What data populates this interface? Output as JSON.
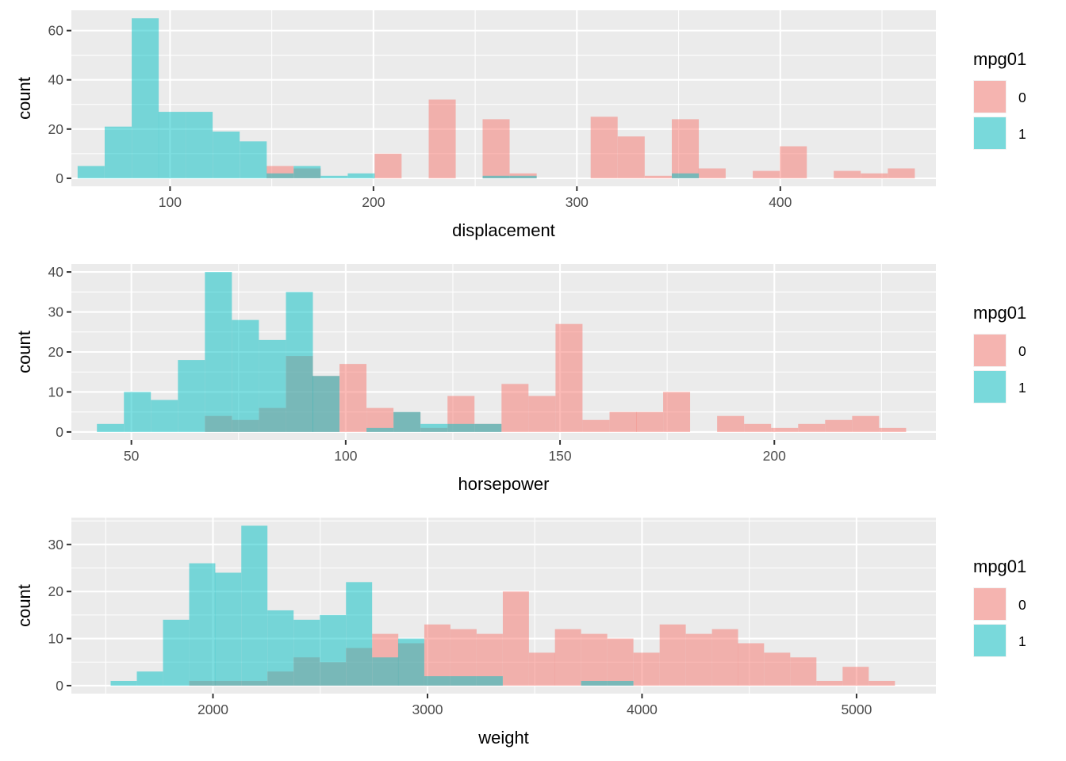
{
  "legend": {
    "title": "mpg01",
    "entries": [
      {
        "label": "0",
        "color": "#F8766D"
      },
      {
        "label": "1",
        "color": "#00BFC4"
      }
    ]
  },
  "fill_alpha": 0.5,
  "chart_data": [
    {
      "type": "bar",
      "subtype": "histogram-overlay",
      "xlabel": "displacement",
      "ylabel": "count",
      "xlim": [
        51.5,
        476.5
      ],
      "ylim": [
        -3.25,
        68.25
      ],
      "x_ticks": [
        100,
        200,
        300,
        400
      ],
      "y_ticks": [
        0,
        20,
        40,
        60
      ],
      "grid": true,
      "legend": "right",
      "binwidth": 13.27,
      "series": [
        {
          "name": "0",
          "color": "#F8766D",
          "bins": [
            [
              61.2,
              0
            ],
            [
              74.5,
              0
            ],
            [
              87.8,
              0
            ],
            [
              101.0,
              0
            ],
            [
              114.3,
              0
            ],
            [
              127.6,
              0
            ],
            [
              140.9,
              0
            ],
            [
              154.1,
              5
            ],
            [
              167.4,
              4
            ],
            [
              180.7,
              0
            ],
            [
              194.0,
              0
            ],
            [
              207.2,
              10
            ],
            [
              220.5,
              0
            ],
            [
              233.8,
              32
            ],
            [
              247.1,
              0
            ],
            [
              260.3,
              24
            ],
            [
              273.6,
              2
            ],
            [
              286.9,
              0
            ],
            [
              300.2,
              0
            ],
            [
              313.4,
              25
            ],
            [
              326.7,
              17
            ],
            [
              340.0,
              1
            ],
            [
              353.3,
              24
            ],
            [
              366.5,
              4
            ],
            [
              379.8,
              0
            ],
            [
              393.1,
              3
            ],
            [
              406.4,
              13
            ],
            [
              419.6,
              0
            ],
            [
              432.9,
              3
            ],
            [
              446.2,
              2
            ],
            [
              459.5,
              4
            ]
          ]
        },
        {
          "name": "1",
          "color": "#00BFC4",
          "bins": [
            [
              61.2,
              5
            ],
            [
              74.5,
              21
            ],
            [
              87.8,
              65
            ],
            [
              101.0,
              27
            ],
            [
              114.3,
              27
            ],
            [
              127.6,
              19
            ],
            [
              140.9,
              15
            ],
            [
              154.1,
              2
            ],
            [
              167.4,
              5
            ],
            [
              180.7,
              1
            ],
            [
              194.0,
              2
            ],
            [
              207.2,
              0
            ],
            [
              220.5,
              0
            ],
            [
              233.8,
              0
            ],
            [
              247.1,
              0
            ],
            [
              260.3,
              1
            ],
            [
              273.6,
              1
            ],
            [
              286.9,
              0
            ],
            [
              300.2,
              0
            ],
            [
              313.4,
              0
            ],
            [
              326.7,
              0
            ],
            [
              340.0,
              0
            ],
            [
              353.3,
              2
            ],
            [
              366.5,
              0
            ],
            [
              379.8,
              0
            ],
            [
              393.1,
              0
            ],
            [
              406.4,
              0
            ],
            [
              419.6,
              0
            ],
            [
              432.9,
              0
            ],
            [
              446.2,
              0
            ],
            [
              459.5,
              0
            ]
          ]
        }
      ]
    },
    {
      "type": "bar",
      "subtype": "histogram-overlay",
      "xlabel": "horsepower",
      "ylabel": "count",
      "xlim": [
        36.0,
        237.7
      ],
      "ylim": [
        -2.0,
        42.0
      ],
      "x_ticks": [
        50,
        100,
        150,
        200
      ],
      "y_ticks": [
        0,
        10,
        20,
        30,
        40
      ],
      "grid": true,
      "legend": "right",
      "binwidth": 6.29,
      "series": [
        {
          "name": "0",
          "color": "#F8766D",
          "bins": [
            [
              45.1,
              0
            ],
            [
              51.4,
              0
            ],
            [
              57.7,
              0
            ],
            [
              64.0,
              0
            ],
            [
              70.3,
              4
            ],
            [
              76.6,
              3
            ],
            [
              82.9,
              6
            ],
            [
              89.2,
              19
            ],
            [
              95.4,
              14
            ],
            [
              101.7,
              17
            ],
            [
              108.0,
              6
            ],
            [
              114.3,
              5
            ],
            [
              120.6,
              1
            ],
            [
              126.9,
              9
            ],
            [
              133.2,
              2
            ],
            [
              139.5,
              12
            ],
            [
              145.8,
              9
            ],
            [
              152.1,
              27
            ],
            [
              158.4,
              3
            ],
            [
              164.7,
              5
            ],
            [
              170.9,
              5
            ],
            [
              177.2,
              10
            ],
            [
              183.5,
              0
            ],
            [
              189.8,
              4
            ],
            [
              196.1,
              2
            ],
            [
              202.4,
              1
            ],
            [
              208.7,
              2
            ],
            [
              215.0,
              3
            ],
            [
              221.3,
              4
            ],
            [
              227.6,
              1
            ]
          ]
        },
        {
          "name": "1",
          "color": "#00BFC4",
          "bins": [
            [
              45.1,
              2
            ],
            [
              51.4,
              10
            ],
            [
              57.7,
              8
            ],
            [
              64.0,
              18
            ],
            [
              70.3,
              40
            ],
            [
              76.6,
              28
            ],
            [
              82.9,
              23
            ],
            [
              89.2,
              35
            ],
            [
              95.4,
              14
            ],
            [
              101.7,
              0
            ],
            [
              108.0,
              1
            ],
            [
              114.3,
              5
            ],
            [
              120.6,
              2
            ],
            [
              126.9,
              2
            ],
            [
              133.2,
              2
            ],
            [
              139.5,
              0
            ],
            [
              145.8,
              0
            ],
            [
              152.1,
              0
            ],
            [
              158.4,
              0
            ],
            [
              164.7,
              0
            ],
            [
              170.9,
              0
            ],
            [
              177.2,
              0
            ],
            [
              183.5,
              0
            ],
            [
              189.8,
              0
            ],
            [
              196.1,
              0
            ],
            [
              202.4,
              0
            ],
            [
              208.7,
              0
            ],
            [
              215.0,
              0
            ],
            [
              221.3,
              0
            ],
            [
              227.6,
              0
            ]
          ]
        }
      ]
    },
    {
      "type": "bar",
      "subtype": "histogram-overlay",
      "xlabel": "weight",
      "ylabel": "count",
      "xlim": [
        1340,
        5370
      ],
      "ylim": [
        -1.7,
        35.7
      ],
      "x_ticks": [
        2000,
        3000,
        4000,
        5000
      ],
      "y_ticks": [
        0,
        10,
        20,
        30
      ],
      "grid": true,
      "legend": "right",
      "binwidth": 121.8,
      "series": [
        {
          "name": "0",
          "color": "#F8766D",
          "bins": [
            [
              1584,
              0
            ],
            [
              1706,
              0
            ],
            [
              1828,
              0
            ],
            [
              1950,
              1
            ],
            [
              2071,
              1
            ],
            [
              2193,
              1
            ],
            [
              2315,
              3
            ],
            [
              2437,
              6
            ],
            [
              2559,
              5
            ],
            [
              2681,
              8
            ],
            [
              2803,
              11
            ],
            [
              2924,
              9
            ],
            [
              3046,
              13
            ],
            [
              3168,
              12
            ],
            [
              3290,
              11
            ],
            [
              3412,
              20
            ],
            [
              3534,
              7
            ],
            [
              3655,
              12
            ],
            [
              3777,
              11
            ],
            [
              3899,
              10
            ],
            [
              4021,
              7
            ],
            [
              4143,
              13
            ],
            [
              4265,
              11
            ],
            [
              4387,
              12
            ],
            [
              4508,
              9
            ],
            [
              4630,
              7
            ],
            [
              4752,
              6
            ],
            [
              4874,
              1
            ],
            [
              4996,
              4
            ],
            [
              5118,
              1
            ]
          ]
        },
        {
          "name": "1",
          "color": "#00BFC4",
          "bins": [
            [
              1584,
              1
            ],
            [
              1706,
              3
            ],
            [
              1828,
              14
            ],
            [
              1950,
              26
            ],
            [
              2071,
              24
            ],
            [
              2193,
              34
            ],
            [
              2315,
              16
            ],
            [
              2437,
              14
            ],
            [
              2559,
              15
            ],
            [
              2681,
              22
            ],
            [
              2803,
              6
            ],
            [
              2924,
              10
            ],
            [
              3046,
              2
            ],
            [
              3168,
              2
            ],
            [
              3290,
              2
            ],
            [
              3412,
              0
            ],
            [
              3534,
              0
            ],
            [
              3655,
              0
            ],
            [
              3777,
              1
            ],
            [
              3899,
              1
            ],
            [
              4021,
              0
            ],
            [
              4143,
              0
            ],
            [
              4265,
              0
            ],
            [
              4387,
              0
            ],
            [
              4508,
              0
            ],
            [
              4630,
              0
            ],
            [
              4752,
              0
            ],
            [
              4874,
              0
            ],
            [
              4996,
              0
            ],
            [
              5118,
              0
            ]
          ]
        }
      ]
    }
  ]
}
